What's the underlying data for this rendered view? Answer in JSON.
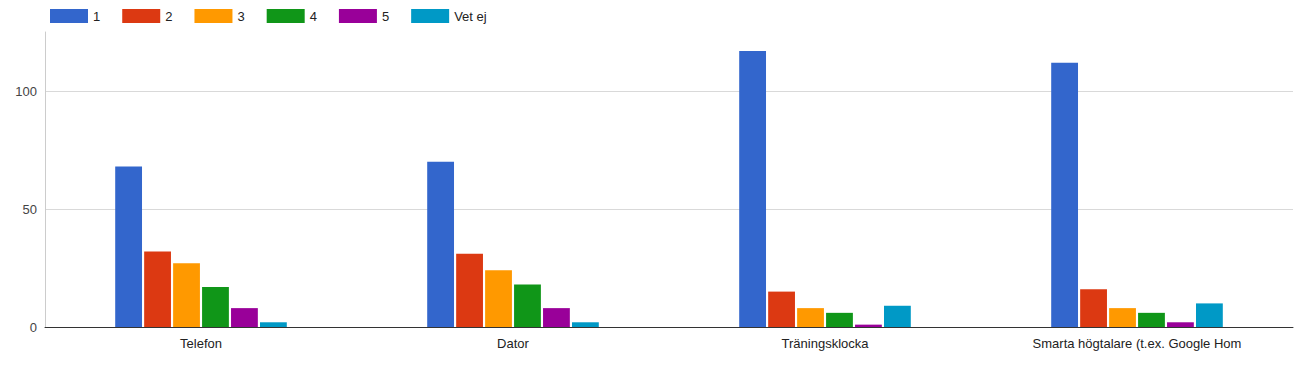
{
  "chart_data": {
    "type": "bar",
    "categories": [
      "Telefon",
      "Dator",
      "Träningsklocka",
      "Smarta högtalare (t.ex. Google Hom"
    ],
    "series": [
      {
        "name": "1",
        "color": "#3366cc",
        "values": [
          68,
          70,
          117,
          112
        ]
      },
      {
        "name": "2",
        "color": "#dc3912",
        "values": [
          32,
          31,
          15,
          16
        ]
      },
      {
        "name": "3",
        "color": "#ff9900",
        "values": [
          27,
          24,
          8,
          8
        ]
      },
      {
        "name": "4",
        "color": "#109618",
        "values": [
          17,
          18,
          6,
          6
        ]
      },
      {
        "name": "5",
        "color": "#990099",
        "values": [
          8,
          8,
          1,
          2
        ]
      },
      {
        "name": "Vet ej",
        "color": "#0099c6",
        "values": [
          2,
          2,
          9,
          10
        ]
      }
    ],
    "ylim": [
      0,
      125
    ],
    "yticks": [
      0,
      50,
      100
    ],
    "grid": true,
    "legend": "top-left"
  }
}
